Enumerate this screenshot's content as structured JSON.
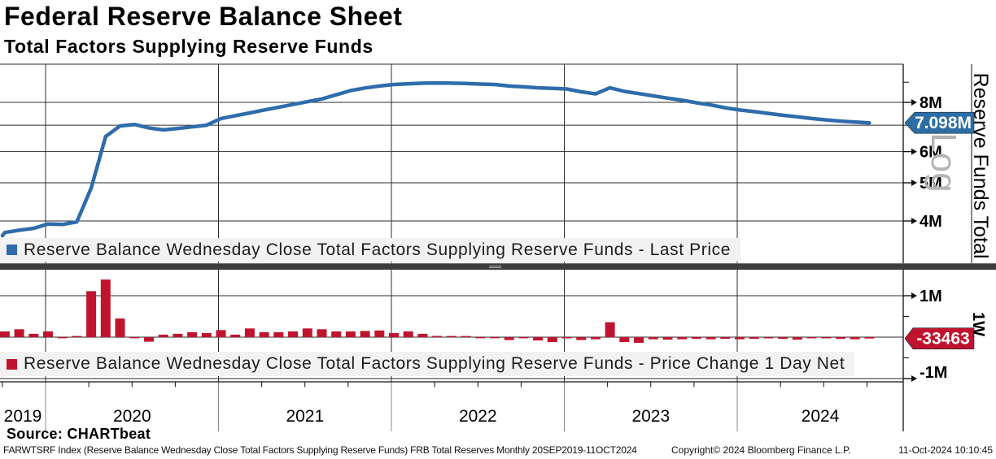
{
  "header": {
    "title": "Federal Reserve Balance Sheet",
    "subtitle": "Total Factors Supplying Reserve Funds"
  },
  "legends": {
    "line": "Reserve Balance Wednesday Close Total Factors Supplying Reserve Funds - Last Price",
    "bar": "Reserve Balance Wednesday Close Total Factors Supplying Reserve Funds - Price Change 1 Day Net"
  },
  "source_line": "Source: CHARTbeat",
  "footer": {
    "left": "FARWTSRF Index (Reserve Balance Wednesday Close Total Factors Supplying Reserve Funds) FRB Total Reserves  Monthly 20SEP2019-11OCT2024",
    "center": "Copyright© 2024 Bloomberg Finance L.P.",
    "right": "11-Oct-2024 10:10:45"
  },
  "chart_data": {
    "type": "line+bar",
    "title": "Federal Reserve Balance Sheet - Total Factors Supplying Reserve Funds",
    "x_months": [
      "2019-09",
      "2019-10",
      "2019-11",
      "2019-12",
      "2020-01",
      "2020-02",
      "2020-03",
      "2020-04",
      "2020-05",
      "2020-06",
      "2020-07",
      "2020-08",
      "2020-09",
      "2020-10",
      "2020-11",
      "2020-12",
      "2021-01",
      "2021-02",
      "2021-03",
      "2021-04",
      "2021-05",
      "2021-06",
      "2021-07",
      "2021-08",
      "2021-09",
      "2021-10",
      "2021-11",
      "2021-12",
      "2022-01",
      "2022-02",
      "2022-03",
      "2022-04",
      "2022-05",
      "2022-06",
      "2022-07",
      "2022-08",
      "2022-09",
      "2022-10",
      "2022-11",
      "2022-12",
      "2023-01",
      "2023-02",
      "2023-03",
      "2023-04",
      "2023-05",
      "2023-06",
      "2023-07",
      "2023-08",
      "2023-09",
      "2023-10",
      "2023-11",
      "2023-12",
      "2024-01",
      "2024-02",
      "2024-03",
      "2024-04",
      "2024-05",
      "2024-06",
      "2024-07",
      "2024-08",
      "2024-09",
      "2024-10"
    ],
    "x_axis": {
      "year_labels": [
        "2019",
        "2020",
        "2021",
        "2022",
        "2023",
        "2024"
      ],
      "range": "20SEP2019-11OCT2024",
      "periodicity": "Monthly"
    },
    "y_axis": {
      "scale": "log",
      "title": "Reserve Funds Total",
      "scale_label": "Log",
      "unit": "M",
      "gridlines": [
        10,
        8,
        7,
        6,
        5,
        4
      ],
      "tick_labels": [
        {
          "v": 8,
          "t": "8M",
          "dy": 0
        },
        {
          "v": 6,
          "t": "6M",
          "dy": 0
        },
        {
          "v": 5,
          "t": "5M",
          "dy": 0
        },
        {
          "v": 4,
          "t": "4M",
          "dy": 0
        }
      ],
      "minor_ticks": [
        9,
        7
      ]
    },
    "y2_axis": {
      "scale": "linear",
      "period_label": "1W",
      "gridlines": [
        1,
        0,
        -1
      ],
      "tick_labels": [
        {
          "v": 1,
          "t": "1M",
          "dy": 0
        },
        {
          "v": -1,
          "t": "-1M",
          "dy": -8
        }
      ],
      "minor_ticks": [
        0.5,
        -0.5
      ]
    },
    "last_price": {
      "text": "7.098M",
      "value": 7.098,
      "color": "#2e6da4"
    },
    "last_change": {
      "text": "-33463",
      "value": -0.033463,
      "color": "#c0142e"
    },
    "series": [
      {
        "name": "Reserve Balance Wednesday Close Total Factors Supplying Reserve Funds - Last Price",
        "type": "line",
        "color": "#2e6cab",
        "values": [
          3.67,
          3.74,
          3.79,
          3.83,
          3.93,
          3.92,
          3.98,
          4.85,
          6.55,
          6.97,
          7.03,
          6.89,
          6.81,
          6.87,
          6.93,
          7.0,
          7.28,
          7.4,
          7.52,
          7.65,
          7.77,
          7.9,
          8.03,
          8.16,
          8.36,
          8.57,
          8.7,
          8.8,
          8.88,
          8.92,
          8.95,
          8.96,
          8.95,
          8.93,
          8.9,
          8.88,
          8.8,
          8.76,
          8.71,
          8.68,
          8.65,
          8.51,
          8.41,
          8.71,
          8.53,
          8.42,
          8.31,
          8.2,
          8.1,
          7.98,
          7.88,
          7.75,
          7.65,
          7.58,
          7.5,
          7.42,
          7.35,
          7.28,
          7.22,
          7.17,
          7.13,
          7.098
        ]
      },
      {
        "name": "Reserve Balance Wednesday Close Total Factors Supplying Reserve Funds - Price Change 1 Day Net",
        "type": "bar",
        "color": "#c0142e",
        "values": [
          null,
          0.14,
          0.19,
          0.08,
          0.14,
          -0.01,
          0.02,
          1.11,
          1.39,
          0.45,
          -0.02,
          -0.11,
          0.06,
          0.08,
          0.12,
          0.1,
          0.17,
          0.06,
          0.21,
          0.12,
          0.12,
          0.14,
          0.21,
          0.19,
          0.14,
          0.14,
          0.15,
          0.16,
          0.1,
          0.14,
          0.08,
          0.03,
          0.02,
          0.01,
          -0.01,
          -0.02,
          -0.07,
          -0.02,
          -0.08,
          -0.12,
          -0.03,
          -0.07,
          -0.05,
          0.36,
          -0.12,
          -0.14,
          -0.05,
          -0.06,
          -0.05,
          -0.04,
          -0.05,
          -0.04,
          -0.05,
          -0.04,
          -0.03,
          -0.04,
          -0.06,
          -0.03,
          -0.03,
          -0.04,
          -0.05,
          -0.033463
        ]
      }
    ]
  }
}
